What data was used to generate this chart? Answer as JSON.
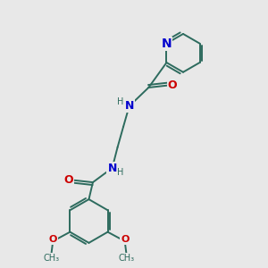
{
  "bg_color": "#e8e8e8",
  "bond_color": "#2d6b5e",
  "N_color": "#0000cd",
  "O_color": "#cc0000",
  "bond_width": 1.4,
  "font_size": 9,
  "fig_size": [
    3.0,
    3.0
  ],
  "dpi": 100,
  "xlim": [
    0,
    10
  ],
  "ylim": [
    0,
    10
  ]
}
